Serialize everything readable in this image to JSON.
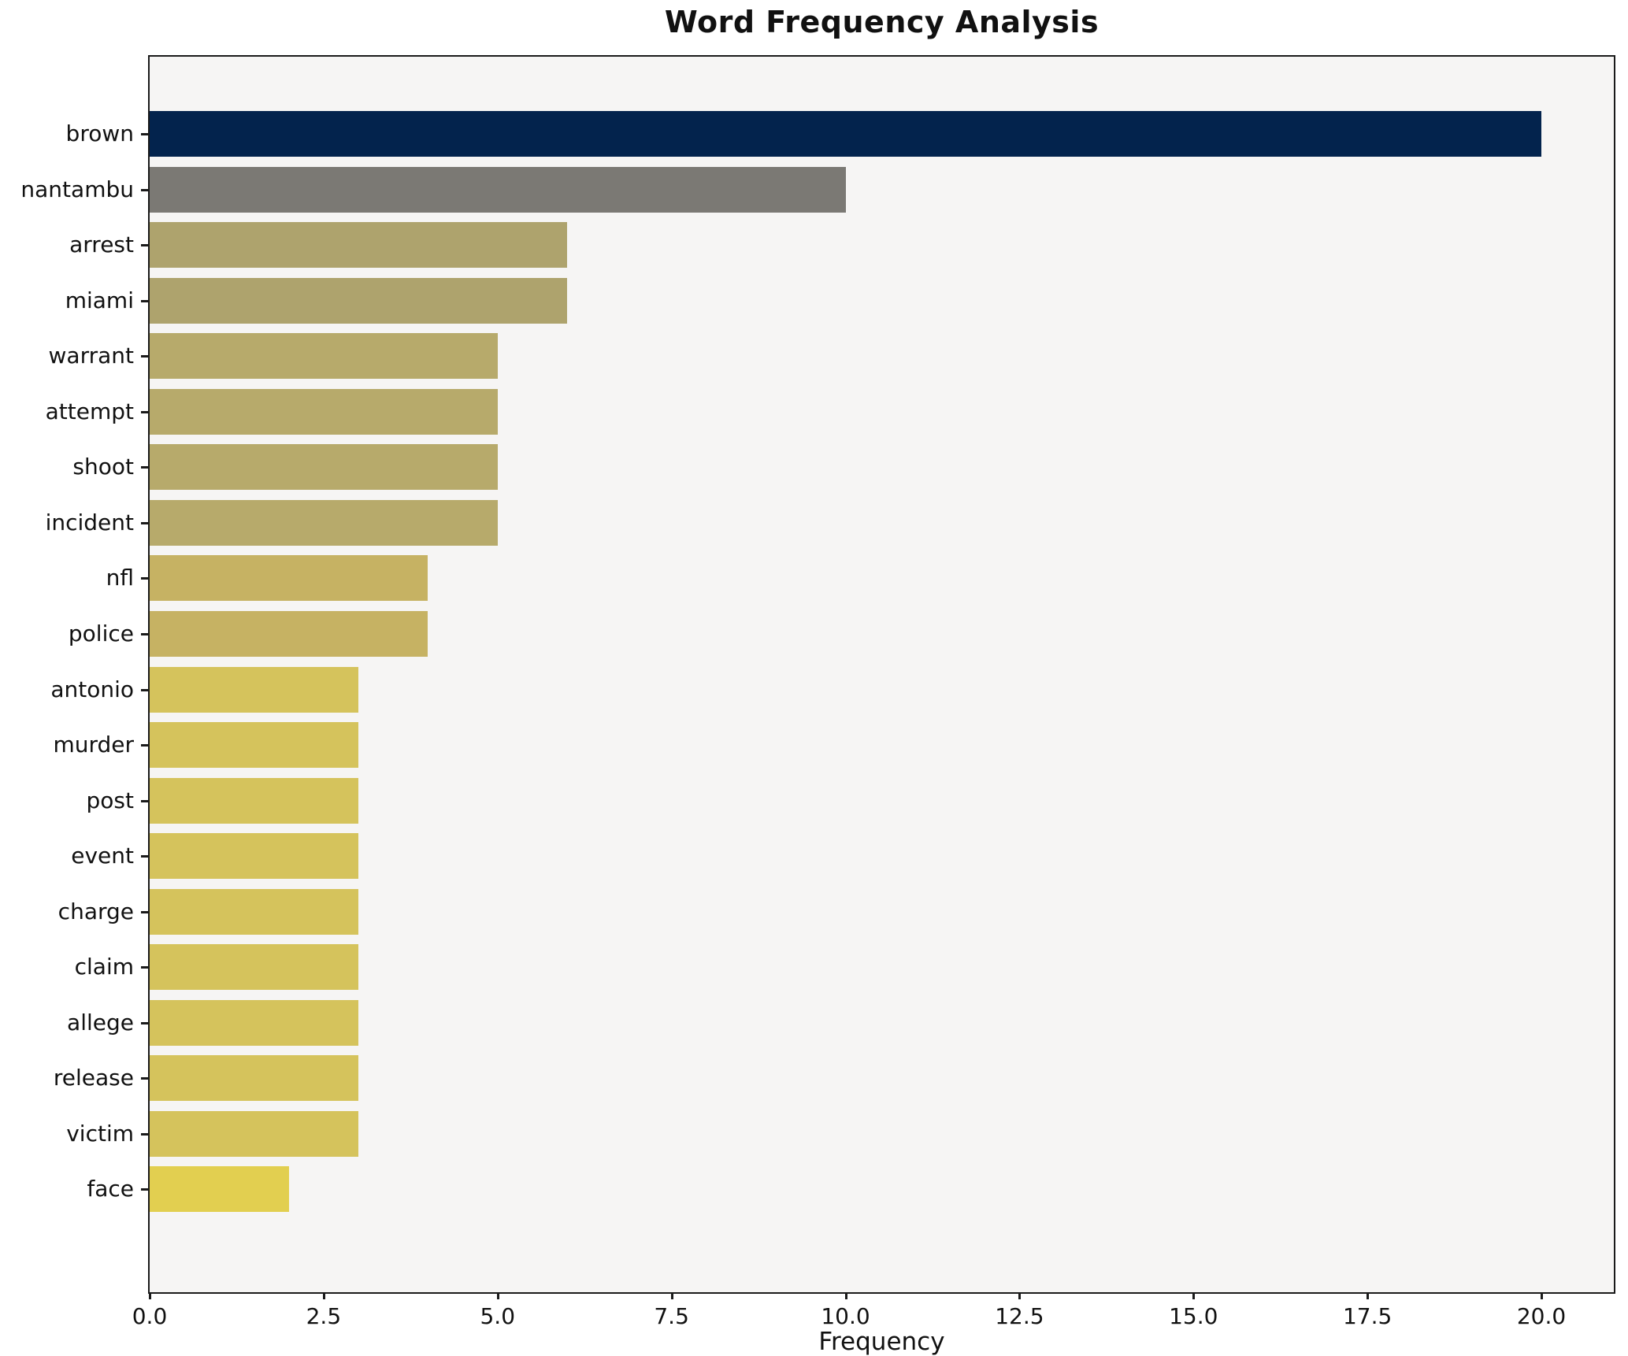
{
  "figure": {
    "title": "Word Frequency Analysis",
    "xlabel": "Frequency"
  },
  "chart_data": {
    "type": "bar",
    "orientation": "horizontal",
    "title": "Word Frequency Analysis",
    "xlabel": "Frequency",
    "ylabel": "",
    "xlim": [
      0,
      21
    ],
    "grid": false,
    "legend_position": "none",
    "plot_background": "#f6f5f4",
    "x_tick_labels": [
      "0.0",
      "2.5",
      "5.0",
      "7.5",
      "10.0",
      "12.5",
      "15.0",
      "17.5",
      "20.0"
    ],
    "x_tick_values": [
      0,
      2.5,
      5,
      7.5,
      10,
      12.5,
      15,
      17.5,
      20
    ],
    "categories": [
      "brown",
      "nantambu",
      "arrest",
      "miami",
      "warrant",
      "attempt",
      "shoot",
      "incident",
      "nfl",
      "police",
      "antonio",
      "murder",
      "post",
      "event",
      "charge",
      "claim",
      "allege",
      "release",
      "victim",
      "face"
    ],
    "values": [
      20,
      10,
      6,
      6,
      5,
      5,
      5,
      5,
      4,
      4,
      3,
      3,
      3,
      3,
      3,
      3,
      3,
      3,
      3,
      2
    ],
    "bar_colors": [
      "#03234d",
      "#7b7974",
      "#aea36d",
      "#aea36d",
      "#b7aa6b",
      "#b7aa6b",
      "#b7aa6b",
      "#b7aa6b",
      "#c6b263",
      "#c6b263",
      "#d5c35c",
      "#d5c35c",
      "#d5c35c",
      "#d5c35c",
      "#d5c35c",
      "#d5c35c",
      "#d5c35c",
      "#d5c35c",
      "#d5c35c",
      "#e2cf50"
    ]
  }
}
